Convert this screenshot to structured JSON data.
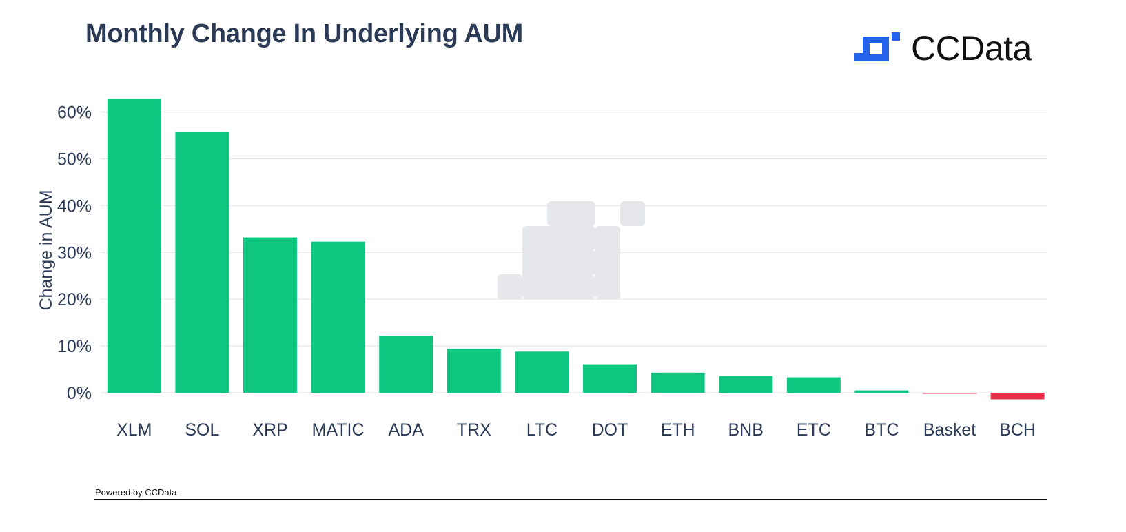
{
  "colors": {
    "title": "#2b3a55",
    "positive_bar": "#0fc681",
    "negative_bar": "#e8304a",
    "small_negative_bar": "#f29aa8",
    "grid": "#e3e5ea",
    "axis_text": "#2b3a55",
    "brand_blue": "#2563eb",
    "watermark": "#e6e7ea"
  },
  "header": {
    "title": "Monthly Change In Underlying AUM"
  },
  "brand": {
    "name": "CCData",
    "icon": "ccdata-logo-icon"
  },
  "footer": {
    "powered_by": "Powered by CCData"
  },
  "chart_data": {
    "type": "bar",
    "title": "Monthly Change In Underlying AUM",
    "xlabel": "",
    "ylabel": "Change in AUM",
    "categories": [
      "XLM",
      "SOL",
      "XRP",
      "MATIC",
      "ADA",
      "TRX",
      "LTC",
      "DOT",
      "ETH",
      "BNB",
      "ETC",
      "BTC",
      "Basket",
      "BCH"
    ],
    "values": [
      62.8,
      55.7,
      33.2,
      32.3,
      12.2,
      9.4,
      8.8,
      6.1,
      4.3,
      3.6,
      3.3,
      0.5,
      -0.1,
      -1.4
    ],
    "ylim": [
      0,
      63
    ],
    "yticks": [
      0,
      10,
      20,
      30,
      40,
      50,
      60
    ],
    "ytick_labels": [
      "0%",
      "10%",
      "20%",
      "30%",
      "40%",
      "50%",
      "60%"
    ],
    "grid": true,
    "legend": "none",
    "watermark_icon": "ccdata-watermark-icon"
  }
}
